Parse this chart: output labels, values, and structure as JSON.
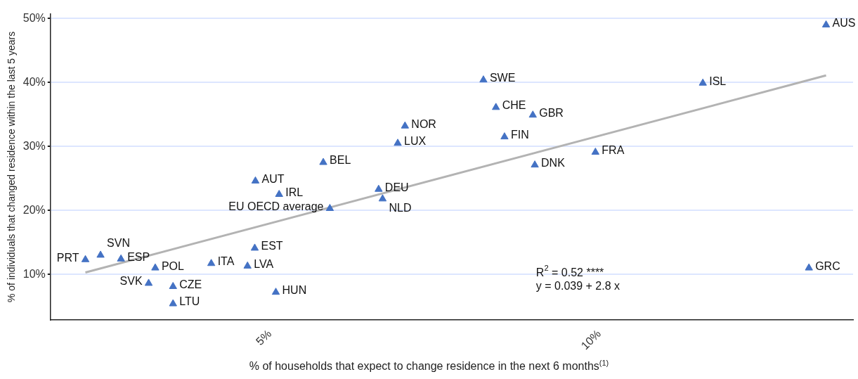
{
  "chart_data": {
    "type": "scatter",
    "xlabel": "% of households that expect to change residence in the next 6 months$^{(1)}$",
    "ylabel": "% of individuals that changed residence within the last 5 years",
    "xlim": [
      1.67,
      13.85
    ],
    "ylim": [
      2.9,
      50.7
    ],
    "xticks": [
      {
        "value": 5,
        "label": "5%"
      },
      {
        "value": 10,
        "label": "10%"
      }
    ],
    "yticks": [
      {
        "value": 10,
        "label": "10%"
      },
      {
        "value": 20,
        "label": "20%"
      },
      {
        "value": 30,
        "label": "30%"
      },
      {
        "value": 40,
        "label": "40%"
      },
      {
        "value": 50,
        "label": "50%"
      }
    ],
    "grid": "y",
    "legend": false,
    "series": [
      {
        "type": "line",
        "color": "#b3b3b3",
        "x": [
          2.2,
          13.44
        ],
        "values": [
          10.3,
          41.1
        ]
      },
      {
        "color": "#4472c4",
        "marker": "triangle",
        "x": [
          2.2,
          2.43,
          2.74,
          3.26,
          3.16,
          3.53,
          3.53,
          4.11,
          4.66,
          4.77,
          5.09,
          4.78,
          5.14,
          5.81,
          5.91,
          6.65,
          6.71,
          6.94,
          7.05,
          8.24,
          8.43,
          8.56,
          8.99,
          9.02,
          9.94,
          11.57,
          13.18,
          13.44
        ],
        "values": [
          12.3,
          13.0,
          12.4,
          11.0,
          8.6,
          8.1,
          5.4,
          11.7,
          11.3,
          14.1,
          7.2,
          24.6,
          22.5,
          27.5,
          20.3,
          23.3,
          21.8,
          30.5,
          33.2,
          40.4,
          36.1,
          31.5,
          34.9,
          27.1,
          29.1,
          39.9,
          11.0,
          49.0
        ]
      }
    ],
    "annotations": [
      {
        "text": "PRT",
        "x": 2.2,
        "y": 12.3
      },
      {
        "text": "SVN",
        "x": 2.43,
        "y": 13.0
      },
      {
        "text": "ESP",
        "x": 2.74,
        "y": 12.4
      },
      {
        "text": "POL",
        "x": 3.26,
        "y": 11.0
      },
      {
        "text": "SVK",
        "x": 3.16,
        "y": 8.6
      },
      {
        "text": "CZE",
        "x": 3.53,
        "y": 8.1
      },
      {
        "text": "LTU",
        "x": 3.53,
        "y": 5.4
      },
      {
        "text": "ITA",
        "x": 4.11,
        "y": 11.7
      },
      {
        "text": "LVA",
        "x": 4.66,
        "y": 11.3
      },
      {
        "text": "EST",
        "x": 4.77,
        "y": 14.1
      },
      {
        "text": "HUN",
        "x": 5.09,
        "y": 7.2
      },
      {
        "text": "AUT",
        "x": 4.78,
        "y": 24.6
      },
      {
        "text": "IRL",
        "x": 5.14,
        "y": 22.5
      },
      {
        "text": "BEL",
        "x": 5.81,
        "y": 27.5
      },
      {
        "text": "EU OECD average",
        "x": 5.91,
        "y": 20.3
      },
      {
        "text": "DEU",
        "x": 6.65,
        "y": 23.3
      },
      {
        "text": "NLD",
        "x": 6.71,
        "y": 21.8
      },
      {
        "text": "LUX",
        "x": 6.94,
        "y": 30.5
      },
      {
        "text": "NOR",
        "x": 7.05,
        "y": 33.2
      },
      {
        "text": "SWE",
        "x": 8.24,
        "y": 40.4
      },
      {
        "text": "CHE",
        "x": 8.43,
        "y": 36.1
      },
      {
        "text": "FIN",
        "x": 8.56,
        "y": 31.5
      },
      {
        "text": "GBR",
        "x": 8.99,
        "y": 34.9
      },
      {
        "text": "DNK",
        "x": 9.02,
        "y": 27.1
      },
      {
        "text": "FRA",
        "x": 9.94,
        "y": 29.1
      },
      {
        "text": "ISL",
        "x": 11.57,
        "y": 39.9
      },
      {
        "text": "GRC",
        "x": 13.18,
        "y": 11.0
      },
      {
        "text": "AUS",
        "x": 13.44,
        "y": 49.0
      },
      "R$^{2}$ = 0.52 ****",
      "y = 0.039 + 2.8 x"
    ]
  }
}
